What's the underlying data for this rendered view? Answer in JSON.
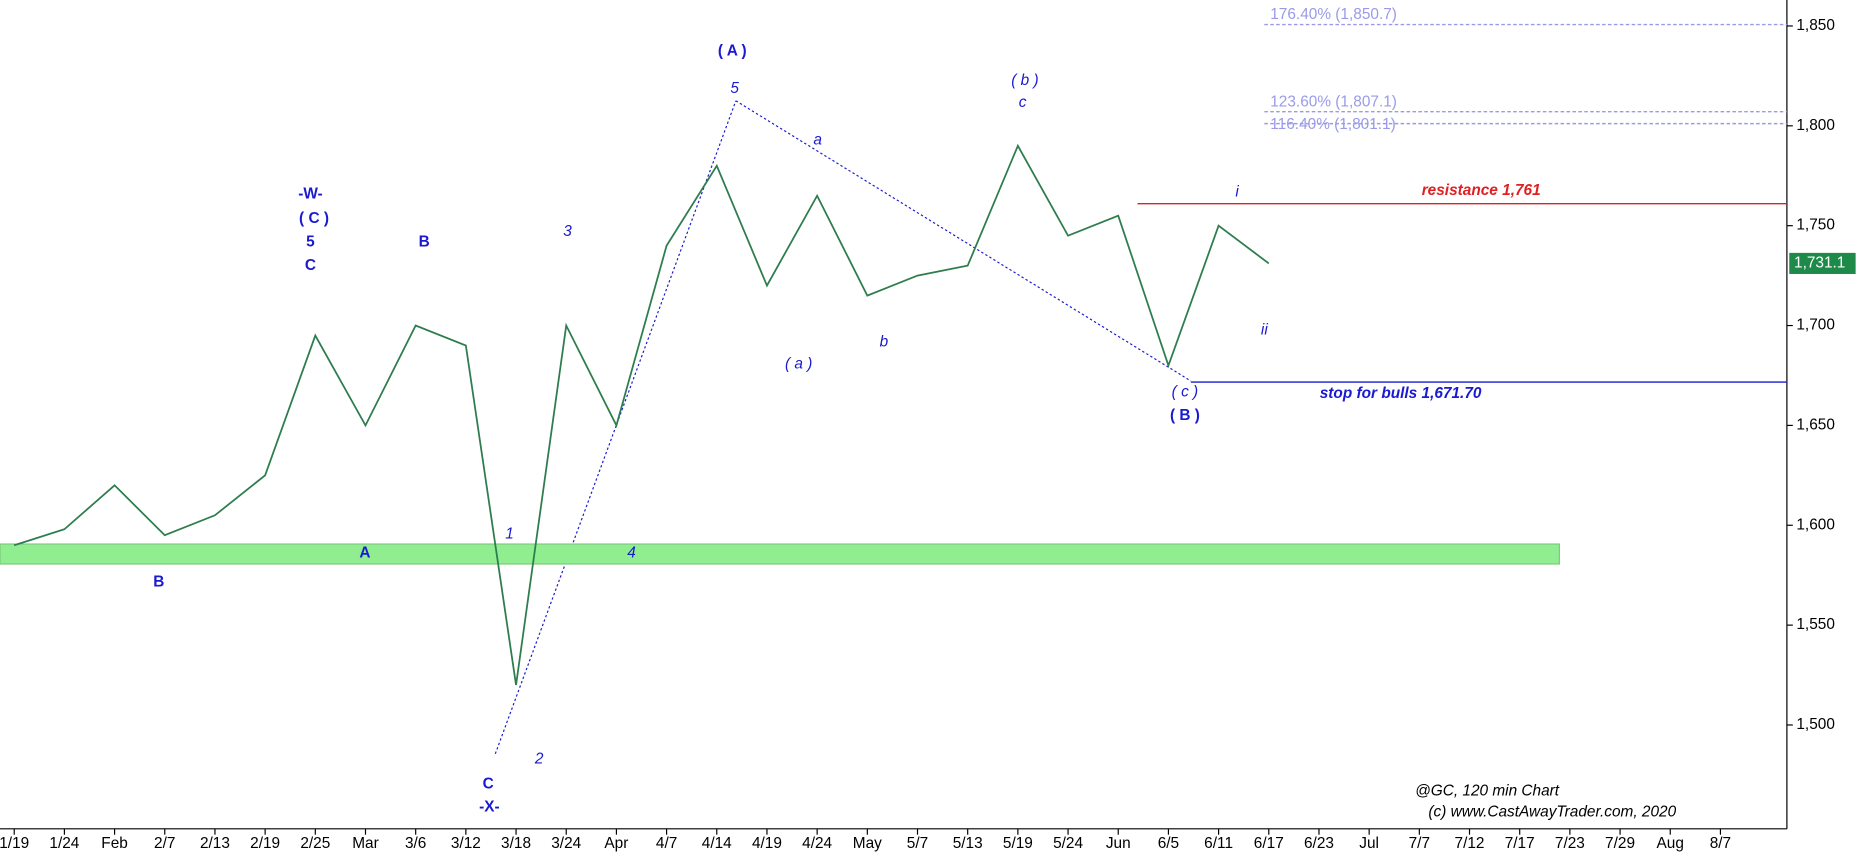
{
  "chart_data": {
    "type": "line",
    "categories": [
      "1/19",
      "1/24",
      "Feb",
      "2/7",
      "2/13",
      "2/19",
      "2/25",
      "Mar",
      "3/6",
      "3/12",
      "3/18",
      "3/24",
      "Apr",
      "4/7",
      "4/14",
      "4/19",
      "4/24",
      "May",
      "5/7",
      "5/13",
      "5/19",
      "5/24",
      "Jun",
      "6/5",
      "6/11",
      "6/17",
      "6/23",
      "Jul",
      "7/7",
      "7/12",
      "7/17",
      "7/23",
      "7/29",
      "Aug",
      "8/7"
    ],
    "series": [
      {
        "name": "@GC",
        "color": "#2e7d4f",
        "values": [
          1590,
          1598,
          1620,
          1595,
          1605,
          1625,
          1695,
          1650,
          1700,
          1690,
          1520,
          1700,
          1650,
          1740,
          1780,
          1720,
          1765,
          1715,
          1725,
          1730,
          1790,
          1745,
          1755,
          1680,
          1750,
          1731.1,
          null,
          null,
          null,
          null,
          null,
          null,
          null,
          null,
          null
        ]
      }
    ],
    "last_price": {
      "value": 1731.1,
      "label": "1,731.1",
      "color": "#1e8a4a"
    },
    "ylim": [
      1448,
      1863
    ],
    "yticks": [
      {
        "value": 1500,
        "label": "1,500"
      },
      {
        "value": 1550,
        "label": "1,550"
      },
      {
        "value": 1600,
        "label": "1,600"
      },
      {
        "value": 1650,
        "label": "1,650"
      },
      {
        "value": 1700,
        "label": "1,700"
      },
      {
        "value": 1750,
        "label": "1,750"
      },
      {
        "value": 1800,
        "label": "1,800"
      },
      {
        "value": 1850,
        "label": "1,850"
      }
    ],
    "support_zone": {
      "range": [
        1580.6,
        1590.6
      ],
      "color": "#90ee90"
    },
    "levels": [
      {
        "label": "resistance 1,761",
        "value": 1761,
        "color": "#e02020"
      },
      {
        "label": "stop for bulls 1,671.70",
        "value": 1671.7,
        "color": "#1a1ad0"
      },
      {
        "label": "176.40% (1,850.7)",
        "value": 1850.7,
        "color": "#9a9ae8"
      },
      {
        "label": "123.60% (1,807.1)",
        "value": 1807.1,
        "color": "#9a9ae8"
      },
      {
        "label": "116.40% (1,801.1)",
        "value": 1801.1,
        "color": "#9a9ae8"
      }
    ],
    "annotations": [
      "-W-",
      "( C )",
      "5",
      "C",
      "B",
      "A",
      "B",
      "1",
      "2",
      "3",
      "4",
      "C",
      "-X-",
      "( A )",
      "5",
      "a",
      "( a )",
      "b",
      "( b )",
      "c",
      "( c )",
      "( B )",
      "i",
      "ii",
      "@GC, 120 min Chart",
      "(c) www.CastAwayTrader.com, 2020"
    ]
  }
}
